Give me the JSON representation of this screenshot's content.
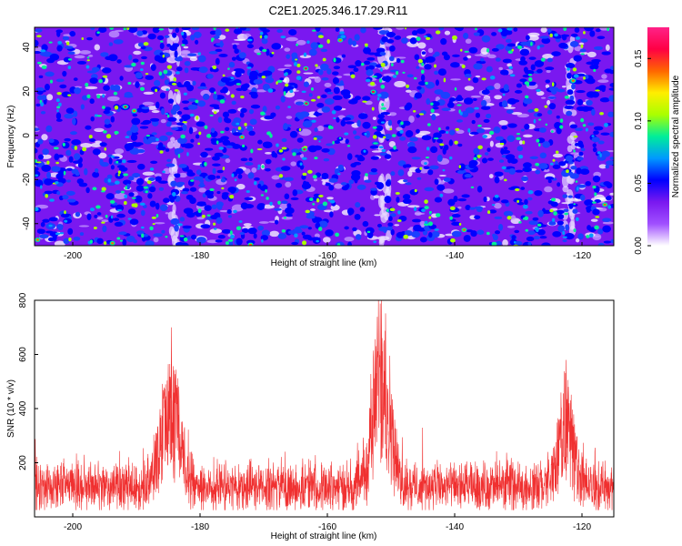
{
  "title": "C2E1.2025.346.17.29.R11",
  "colors": {
    "snr_line": "#f03030",
    "cmap": [
      "#ffffff",
      "#a050ff",
      "#7a18f0",
      "#0000ff",
      "#0099ff",
      "#00ee99",
      "#aaff00",
      "#ffee00",
      "#ff6600",
      "#ff0044",
      "#ff2288"
    ]
  },
  "chart_data": [
    {
      "type": "heatmap",
      "name": "spectrogram",
      "xlabel": "Height of straight line (km)",
      "ylabel": "Frequency (Hz)",
      "xlim": [
        -206,
        -115
      ],
      "ylim": [
        -50,
        49
      ],
      "xticks": [
        -200,
        -180,
        -160,
        -140,
        -120
      ],
      "yticks": [
        -40,
        -20,
        0,
        20,
        40
      ],
      "xtick_labels": [
        "-200",
        "-180",
        "-160",
        "-140",
        "-120"
      ],
      "ytick_labels": [
        "-40",
        "-20",
        "0",
        "20",
        "40"
      ],
      "vertical_features_x": [
        -184,
        -151,
        -122
      ],
      "colorbar": {
        "label": "Normalized spectral amplitude",
        "range": [
          0.0,
          0.175
        ],
        "ticks": [
          0.0,
          0.05,
          0.1,
          0.15
        ],
        "tick_labels": [
          "0.00",
          "0.05",
          "0.10",
          "0.15"
        ]
      }
    },
    {
      "type": "line",
      "name": "snr",
      "xlabel": "Height of straight line (km)",
      "ylabel": "SNR (10 * v/v)",
      "xlim": [
        -206,
        -115
      ],
      "ylim": [
        0,
        800
      ],
      "xticks": [
        -200,
        -180,
        -160,
        -140,
        -120
      ],
      "yticks": [
        200,
        400,
        600,
        800
      ],
      "xtick_labels": [
        "-200",
        "-180",
        "-160",
        "-140",
        "-120"
      ],
      "ytick_labels": [
        "200",
        "400",
        "600",
        "800"
      ],
      "baseline": 130,
      "noise_amplitude": 90,
      "peaks": [
        {
          "x": -184.5,
          "height": 320,
          "width_km": 2.2
        },
        {
          "x": -151.5,
          "height": 520,
          "width_km": 1.8
        },
        {
          "x": -122.5,
          "height": 260,
          "width_km": 1.8
        }
      ],
      "peak_maxima": [
        {
          "x": -184.5,
          "y": 700
        },
        {
          "x": -151.5,
          "y": 800
        },
        {
          "x": -122.5,
          "y": 580
        }
      ]
    }
  ]
}
